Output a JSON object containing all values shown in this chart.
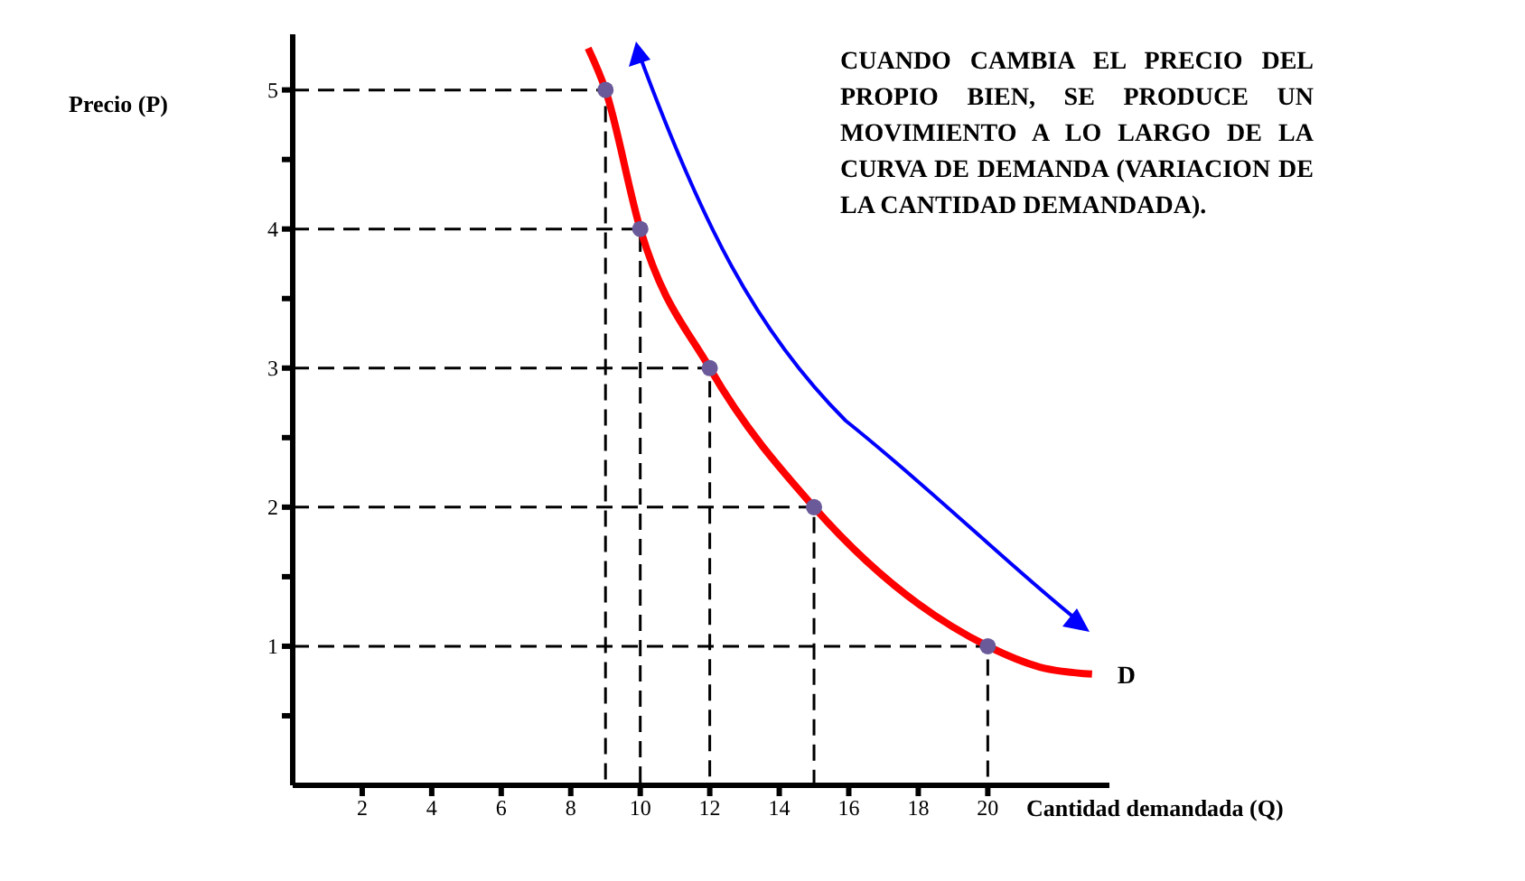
{
  "chart_data": {
    "type": "line",
    "xlabel": "Cantidad demandada (Q)",
    "ylabel": "Precio (P)",
    "annotations": [
      "CUANDO CAMBIA EL PRECIO DEL PROPIO BIEN, SE PRODUCE UN MOVIMIENTO A LO LARGO DE LA CURVA DE DEMANDA (VARIACION DE LA CANTIDAD DEMANDADA)."
    ],
    "xlim": [
      0,
      23.5
    ],
    "xticks": [
      2,
      4,
      6,
      8,
      10,
      12,
      14,
      16,
      18,
      20
    ],
    "ylim": [
      0,
      5.4
    ],
    "yticks": [
      {
        "value": 0.5,
        "label": null
      },
      1,
      {
        "value": 1.5,
        "label": null
      },
      2,
      {
        "value": 2.5,
        "label": null
      },
      3,
      {
        "value": 3.5,
        "label": null
      },
      4,
      {
        "value": 4.5,
        "label": null
      },
      5
    ],
    "grid": false,
    "legend": false,
    "series": [
      {
        "type": "line",
        "color": "#000000",
        "marker": "none",
        "line_style": "dashed",
        "x": [
          0,
          9,
          9
        ],
        "values": [
          5,
          5,
          0
        ]
      },
      {
        "type": "line",
        "color": "#000000",
        "marker": "none",
        "line_style": "dashed",
        "x": [
          0,
          10,
          10
        ],
        "values": [
          4,
          4,
          0
        ]
      },
      {
        "type": "line",
        "color": "#000000",
        "marker": "none",
        "line_style": "dashed",
        "x": [
          0,
          12,
          12
        ],
        "values": [
          3,
          3,
          0
        ]
      },
      {
        "type": "line",
        "color": "#000000",
        "marker": "none",
        "line_style": "dashed",
        "x": [
          0,
          15,
          15
        ],
        "values": [
          2,
          2,
          0
        ]
      },
      {
        "type": "line",
        "color": "#000000",
        "marker": "none",
        "line_style": "dashed",
        "x": [
          0,
          20,
          20
        ],
        "values": [
          1,
          1,
          0
        ]
      },
      {
        "name": "D",
        "color": "#ff0000",
        "marker": "none",
        "line_style": "solid",
        "x": [
          8.5,
          9,
          10,
          12,
          15,
          20,
          21.5,
          23
        ],
        "values": [
          5.3,
          5,
          4,
          3,
          2,
          1,
          0.85,
          0.8
        ]
      },
      {
        "type": "scatter",
        "color": "#6a5a9a",
        "marker": "circle",
        "x": [
          9,
          10,
          12,
          15,
          20
        ],
        "values": [
          5,
          4,
          3,
          2,
          1
        ]
      }
    ]
  }
}
